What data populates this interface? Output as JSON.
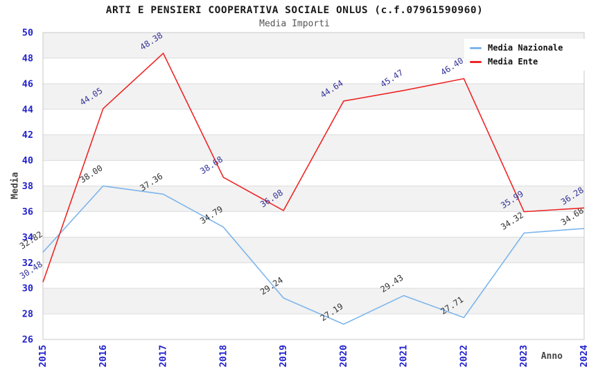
{
  "header": {
    "title": "ARTI E PENSIERI COOPERATIVA SOCIALE ONLUS (c.f.07961590960)",
    "subtitle": "Media Importi"
  },
  "chart_data": {
    "type": "line",
    "title": "ARTI E PENSIERI COOPERATIVA SOCIALE ONLUS (c.f.07961590960)",
    "subtitle": "Media Importi",
    "xlabel": "Anno",
    "ylabel": "Media",
    "x": [
      2015,
      2016,
      2017,
      2018,
      2019,
      2020,
      2021,
      2022,
      2023,
      2024
    ],
    "series": [
      {
        "name": "Media Nazionale",
        "color": "#7cb5ec",
        "label_color": "#333333",
        "values": [
          32.82,
          38.0,
          37.36,
          34.79,
          29.24,
          27.19,
          29.43,
          27.71,
          34.32,
          34.68
        ],
        "labels": [
          "32.82",
          "38.00",
          "37.36",
          "34.79",
          "29.24",
          "27.19",
          "29.43",
          "27.71",
          "34.32",
          "34.68"
        ]
      },
      {
        "name": "Media Ente",
        "color": "#ee2525",
        "label_color": "#333399",
        "values": [
          30.48,
          44.05,
          48.38,
          38.68,
          36.08,
          44.64,
          45.47,
          46.4,
          35.99,
          36.28
        ],
        "labels": [
          "30.48",
          "44.05",
          "48.38",
          "38.68",
          "36.08",
          "44.64",
          "45.47",
          "46.40",
          "35.99",
          "36.28"
        ]
      }
    ],
    "ylim": [
      26,
      50
    ],
    "y_ticks": [
      26,
      28,
      30,
      32,
      34,
      36,
      38,
      40,
      42,
      44,
      46,
      48,
      50
    ],
    "grid": true,
    "legend_position": "top-right",
    "styles": {
      "tick_label_color": "#2222cc",
      "axis_title_color": "#444444",
      "band_color": "#f2f2f2",
      "gridline_color": "#dcdcdc",
      "plot_border_color": "#c8c8c8"
    }
  }
}
